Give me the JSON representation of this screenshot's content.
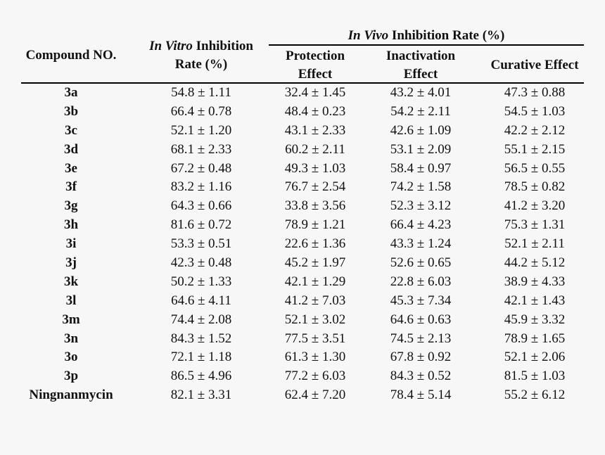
{
  "header": {
    "compound": "Compound NO.",
    "in_vitro_italic": "In Vitro",
    "in_vitro_rest": " Inhibition",
    "in_vitro_line2": "Rate (%)",
    "in_vivo_italic": "In Vivo",
    "in_vivo_rest": " Inhibition Rate (%)",
    "protection_line1": "Protection",
    "protection_line2": "Effect",
    "inactivation_line1": "Inactivation",
    "inactivation_line2": "Effect",
    "curative": "Curative Effect"
  },
  "rows": [
    [
      "3a",
      "54.8 ± 1.11",
      "32.4 ± 1.45",
      "43.2 ± 4.01",
      "47.3 ± 0.88"
    ],
    [
      "3b",
      "66.4 ± 0.78",
      "48.4 ± 0.23",
      "54.2 ± 2.11",
      "54.5 ± 1.03"
    ],
    [
      "3c",
      "52.1 ± 1.20",
      "43.1 ± 2.33",
      "42.6 ± 1.09",
      "42.2 ± 2.12"
    ],
    [
      "3d",
      "68.1 ± 2.33",
      "60.2 ± 2.11",
      "53.1 ± 2.09",
      "55.1 ± 2.15"
    ],
    [
      "3e",
      "67.2 ± 0.48",
      "49.3 ± 1.03",
      "58.4 ± 0.97",
      "56.5 ± 0.55"
    ],
    [
      "3f",
      "83.2 ± 1.16",
      "76.7 ± 2.54",
      "74.2 ± 1.58",
      "78.5 ± 0.82"
    ],
    [
      "3g",
      "64.3 ± 0.66",
      "33.8 ± 3.56",
      "52.3 ± 3.12",
      "41.2 ± 3.20"
    ],
    [
      "3h",
      "81.6 ± 0.72",
      "78.9 ± 1.21",
      "66.4 ± 4.23",
      "75.3 ± 1.31"
    ],
    [
      "3i",
      "53.3 ± 0.51",
      "22.6 ± 1.36",
      "43.3 ± 1.24",
      "52.1 ± 2.11"
    ],
    [
      "3j",
      "42.3 ± 0.48",
      "45.2 ± 1.97",
      "52.6 ± 0.65",
      "44.2 ± 5.12"
    ],
    [
      "3k",
      "50.2 ± 1.33",
      "42.1 ± 1.29",
      "22.8 ± 6.03",
      "38.9 ± 4.33"
    ],
    [
      "3l",
      "64.6 ± 4.11",
      "41.2 ± 7.03",
      "45.3 ± 7.34",
      "42.1 ± 1.43"
    ],
    [
      "3m",
      "74.4 ± 2.08",
      "52.1 ± 3.02",
      "64.6 ± 0.63",
      "45.9 ± 3.32"
    ],
    [
      "3n",
      "84.3 ± 1.52",
      "77.5 ± 3.51",
      "74.5 ± 2.13",
      "78.9 ± 1.65"
    ],
    [
      "3o",
      "72.1 ± 1.18",
      "61.3 ± 1.30",
      "67.8 ± 0.92",
      "52.1 ± 2.06"
    ],
    [
      "3p",
      "86.5 ± 4.96",
      "77.2 ± 6.03",
      "84.3 ± 0.52",
      "81.5 ± 1.03"
    ],
    [
      "Ningnanmycin",
      "82.1 ± 3.31",
      "62.4 ± 7.20",
      "78.4 ± 5.14",
      "55.2 ± 6.12"
    ]
  ]
}
